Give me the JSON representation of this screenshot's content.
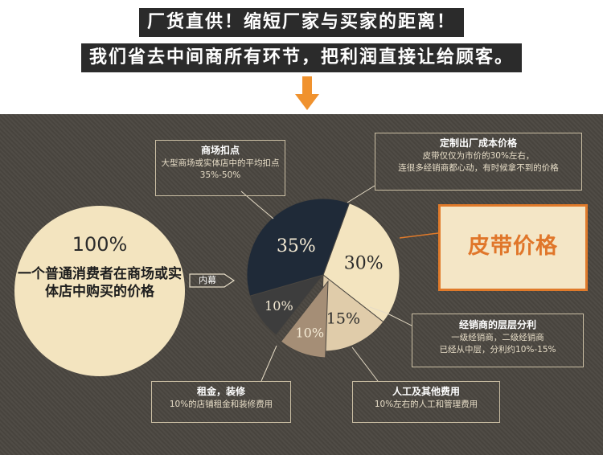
{
  "banner": {
    "line1": "厂货直供！缩短厂家与买家的距离！",
    "line2": "我们省去中间商所有环节，把利润直接让给顾客。"
  },
  "colors": {
    "arrow": "#f0922e",
    "panel": "#4a4640",
    "cream": "#f3e4bf",
    "dark_slice": "#1f2a38",
    "tan_slice": "#e0ccaa",
    "brown_slice": "#a58e76",
    "gray_slice": "#3d3d3d",
    "accent_orange": "#e0762a"
  },
  "left_circle": {
    "percent": "100%",
    "text": "一个普通消费者在商场或实体店中购买的价格"
  },
  "tag": {
    "label": "内幕"
  },
  "chart_data": {
    "type": "pie",
    "slices": [
      {
        "label": "30%",
        "value": 30,
        "color": "#f3e4bf"
      },
      {
        "label": "15%",
        "value": 15,
        "color": "#e0ccaa"
      },
      {
        "label": "10%",
        "value": 10,
        "color": "#a58e76"
      },
      {
        "label": "10%",
        "value": 10,
        "color": "#3d3d3d"
      },
      {
        "label": "35%",
        "value": 35,
        "color": "#1f2a38"
      }
    ]
  },
  "callouts": {
    "mall": {
      "title": "商场扣点",
      "desc": "大型商场或实体店中的平均扣点35%-50%"
    },
    "factory": {
      "title": "定制出厂成本价格",
      "desc1": "皮带仅仅为市价的30%左右，",
      "desc2": "连很多经销商都心动，有时候拿不到的价格"
    },
    "dealer": {
      "title": "经销商的层层分利",
      "desc1": "一级经销商，二级经销商",
      "desc2": "已经从中层，分利约10%-15%"
    },
    "rent": {
      "title": "租金，装修",
      "desc": "10%的店铺租金和装修费用"
    },
    "labor": {
      "title": "人工及其他费用",
      "desc": "10%左右的人工和管理费用"
    }
  },
  "price_box": {
    "label": "皮带价格"
  }
}
